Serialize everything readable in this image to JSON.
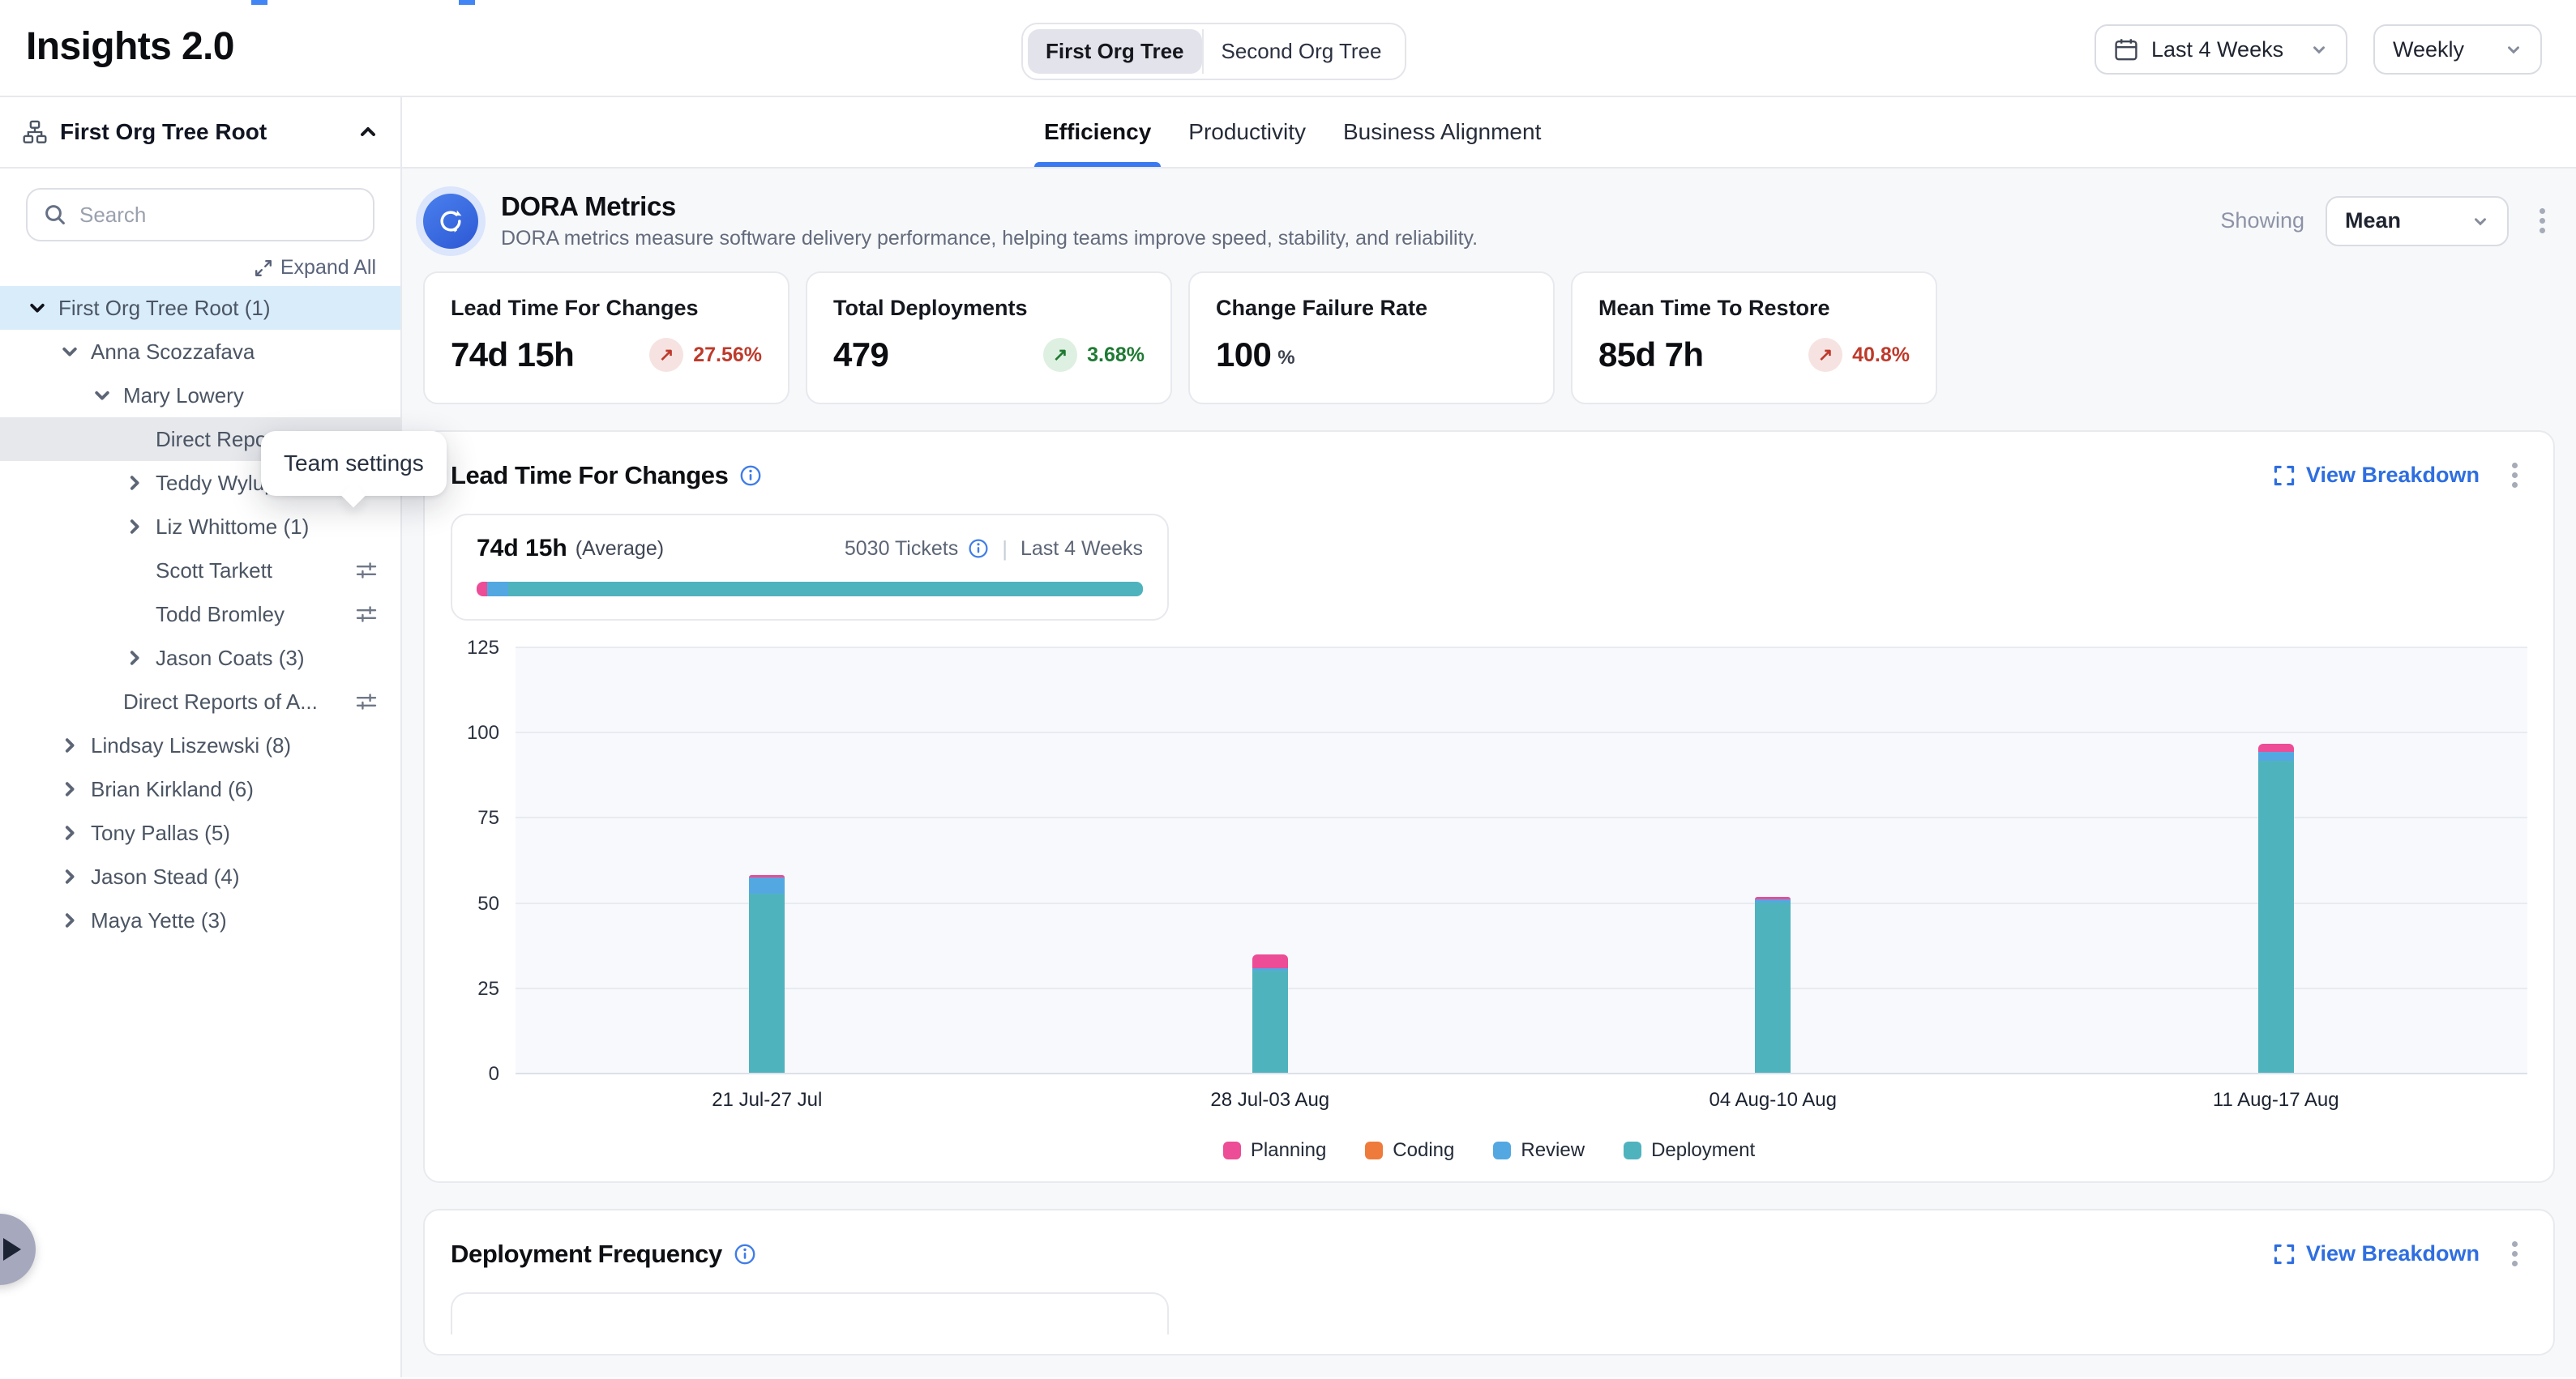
{
  "app": {
    "title": "Insights 2.0"
  },
  "topbar": {
    "org_toggle": {
      "options": [
        "First Org Tree",
        "Second Org Tree"
      ],
      "selected": "First Org Tree"
    },
    "date_range": {
      "value": "Last 4 Weeks"
    },
    "granularity": {
      "value": "Weekly"
    }
  },
  "sidebar": {
    "header": {
      "title": "First Org Tree Root"
    },
    "search": {
      "placeholder": "Search"
    },
    "expand_all_label": "Expand All",
    "tooltip": {
      "text": "Team settings"
    },
    "tree": [
      {
        "label": "First Org Tree Root (1)",
        "level": 0,
        "chevron": "down",
        "highlighted": true
      },
      {
        "label": "Anna Scozzafava",
        "level": 1,
        "chevron": "down"
      },
      {
        "label": "Mary Lowery",
        "level": 2,
        "chevron": "down"
      },
      {
        "label": "Direct Reports ...",
        "level": 3,
        "chevron": "none",
        "selected": true,
        "settings": true
      },
      {
        "label": "Teddy Wylupski (2)",
        "level": 3,
        "chevron": "right"
      },
      {
        "label": "Liz Whittome (1)",
        "level": 3,
        "chevron": "right"
      },
      {
        "label": "Scott Tarkett",
        "level": 3,
        "chevron": "none",
        "settings": true
      },
      {
        "label": "Todd Bromley",
        "level": 3,
        "chevron": "none",
        "settings": true
      },
      {
        "label": "Jason Coats (3)",
        "level": 3,
        "chevron": "right"
      },
      {
        "label": "Direct Reports of A...",
        "level": 2,
        "chevron": "none",
        "settings": true
      },
      {
        "label": "Lindsay Liszewski (8)",
        "level": 1,
        "chevron": "right"
      },
      {
        "label": "Brian Kirkland (6)",
        "level": 1,
        "chevron": "right"
      },
      {
        "label": "Tony Pallas (5)",
        "level": 1,
        "chevron": "right"
      },
      {
        "label": "Jason Stead (4)",
        "level": 1,
        "chevron": "right"
      },
      {
        "label": "Maya Yette (3)",
        "level": 1,
        "chevron": "right"
      }
    ]
  },
  "tabs": {
    "items": [
      "Efficiency",
      "Productivity",
      "Business Alignment"
    ],
    "active": "Efficiency"
  },
  "dora": {
    "title": "DORA Metrics",
    "subtitle": "DORA metrics measure software delivery performance, helping teams improve speed, stability, and reliability.",
    "showing_label": "Showing",
    "showing_value": "Mean",
    "cards": [
      {
        "title": "Lead Time For Changes",
        "value": "74d 15h",
        "delta": "27.56%",
        "direction": "up",
        "sentiment": "negative"
      },
      {
        "title": "Total Deployments",
        "value": "479",
        "delta": "3.68%",
        "direction": "up",
        "sentiment": "positive"
      },
      {
        "title": "Change Failure Rate",
        "value": "100",
        "suffix": "%"
      },
      {
        "title": "Mean Time To Restore",
        "value": "85d 7h",
        "delta": "40.8%",
        "direction": "up",
        "sentiment": "negative"
      }
    ]
  },
  "lead_time_section": {
    "title": "Lead Time For Changes",
    "view_breakdown_label": "View Breakdown",
    "summary": {
      "value": "74d 15h",
      "qualifier": "(Average)",
      "tickets": "5030 Tickets",
      "divider": "|",
      "range": "Last 4 Weeks",
      "bar_segments": [
        {
          "name": "Planning",
          "pct": 1.6
        },
        {
          "name": "Review",
          "pct": 3.2
        },
        {
          "name": "Deployment",
          "pct": 95.2
        }
      ]
    }
  },
  "chart_data": {
    "type": "bar",
    "stacked": true,
    "title": "Lead Time For Changes",
    "categories": [
      "21 Jul-27 Jul",
      "28 Jul-03 Aug",
      "04 Aug-10 Aug",
      "11 Aug-17 Aug"
    ],
    "series": [
      {
        "name": "Planning",
        "color": "#ED4C96",
        "values": [
          0.8,
          4.0,
          0.8,
          2.3
        ]
      },
      {
        "name": "Coding",
        "color": "#EE7B3C",
        "values": [
          0,
          0,
          0,
          0
        ]
      },
      {
        "name": "Review",
        "color": "#53A8E2",
        "values": [
          4.6,
          0.6,
          0.8,
          2.6
        ]
      },
      {
        "name": "Deployment",
        "color": "#4FB3BE",
        "values": [
          52.6,
          30.0,
          50.0,
          91.5
        ]
      }
    ],
    "stack_order_bottom_to_top": [
      "Deployment",
      "Review",
      "Coding",
      "Planning"
    ],
    "ylim": [
      0,
      125
    ],
    "yticks": [
      0,
      25,
      50,
      75,
      100,
      125
    ],
    "grid": true,
    "legend_position": "bottom"
  },
  "deployment_section": {
    "title": "Deployment Frequency",
    "view_breakdown_label": "View Breakdown"
  },
  "colors": {
    "accent_blue": "#3a7af0",
    "link_blue": "#2e6ee0",
    "negative_red": "#be3a2b",
    "positive_green": "#1f7a33",
    "tree_highlight": "#d9ecfa",
    "tree_selected": "#e6e8ec",
    "plot_background": "#f7f9fc"
  }
}
